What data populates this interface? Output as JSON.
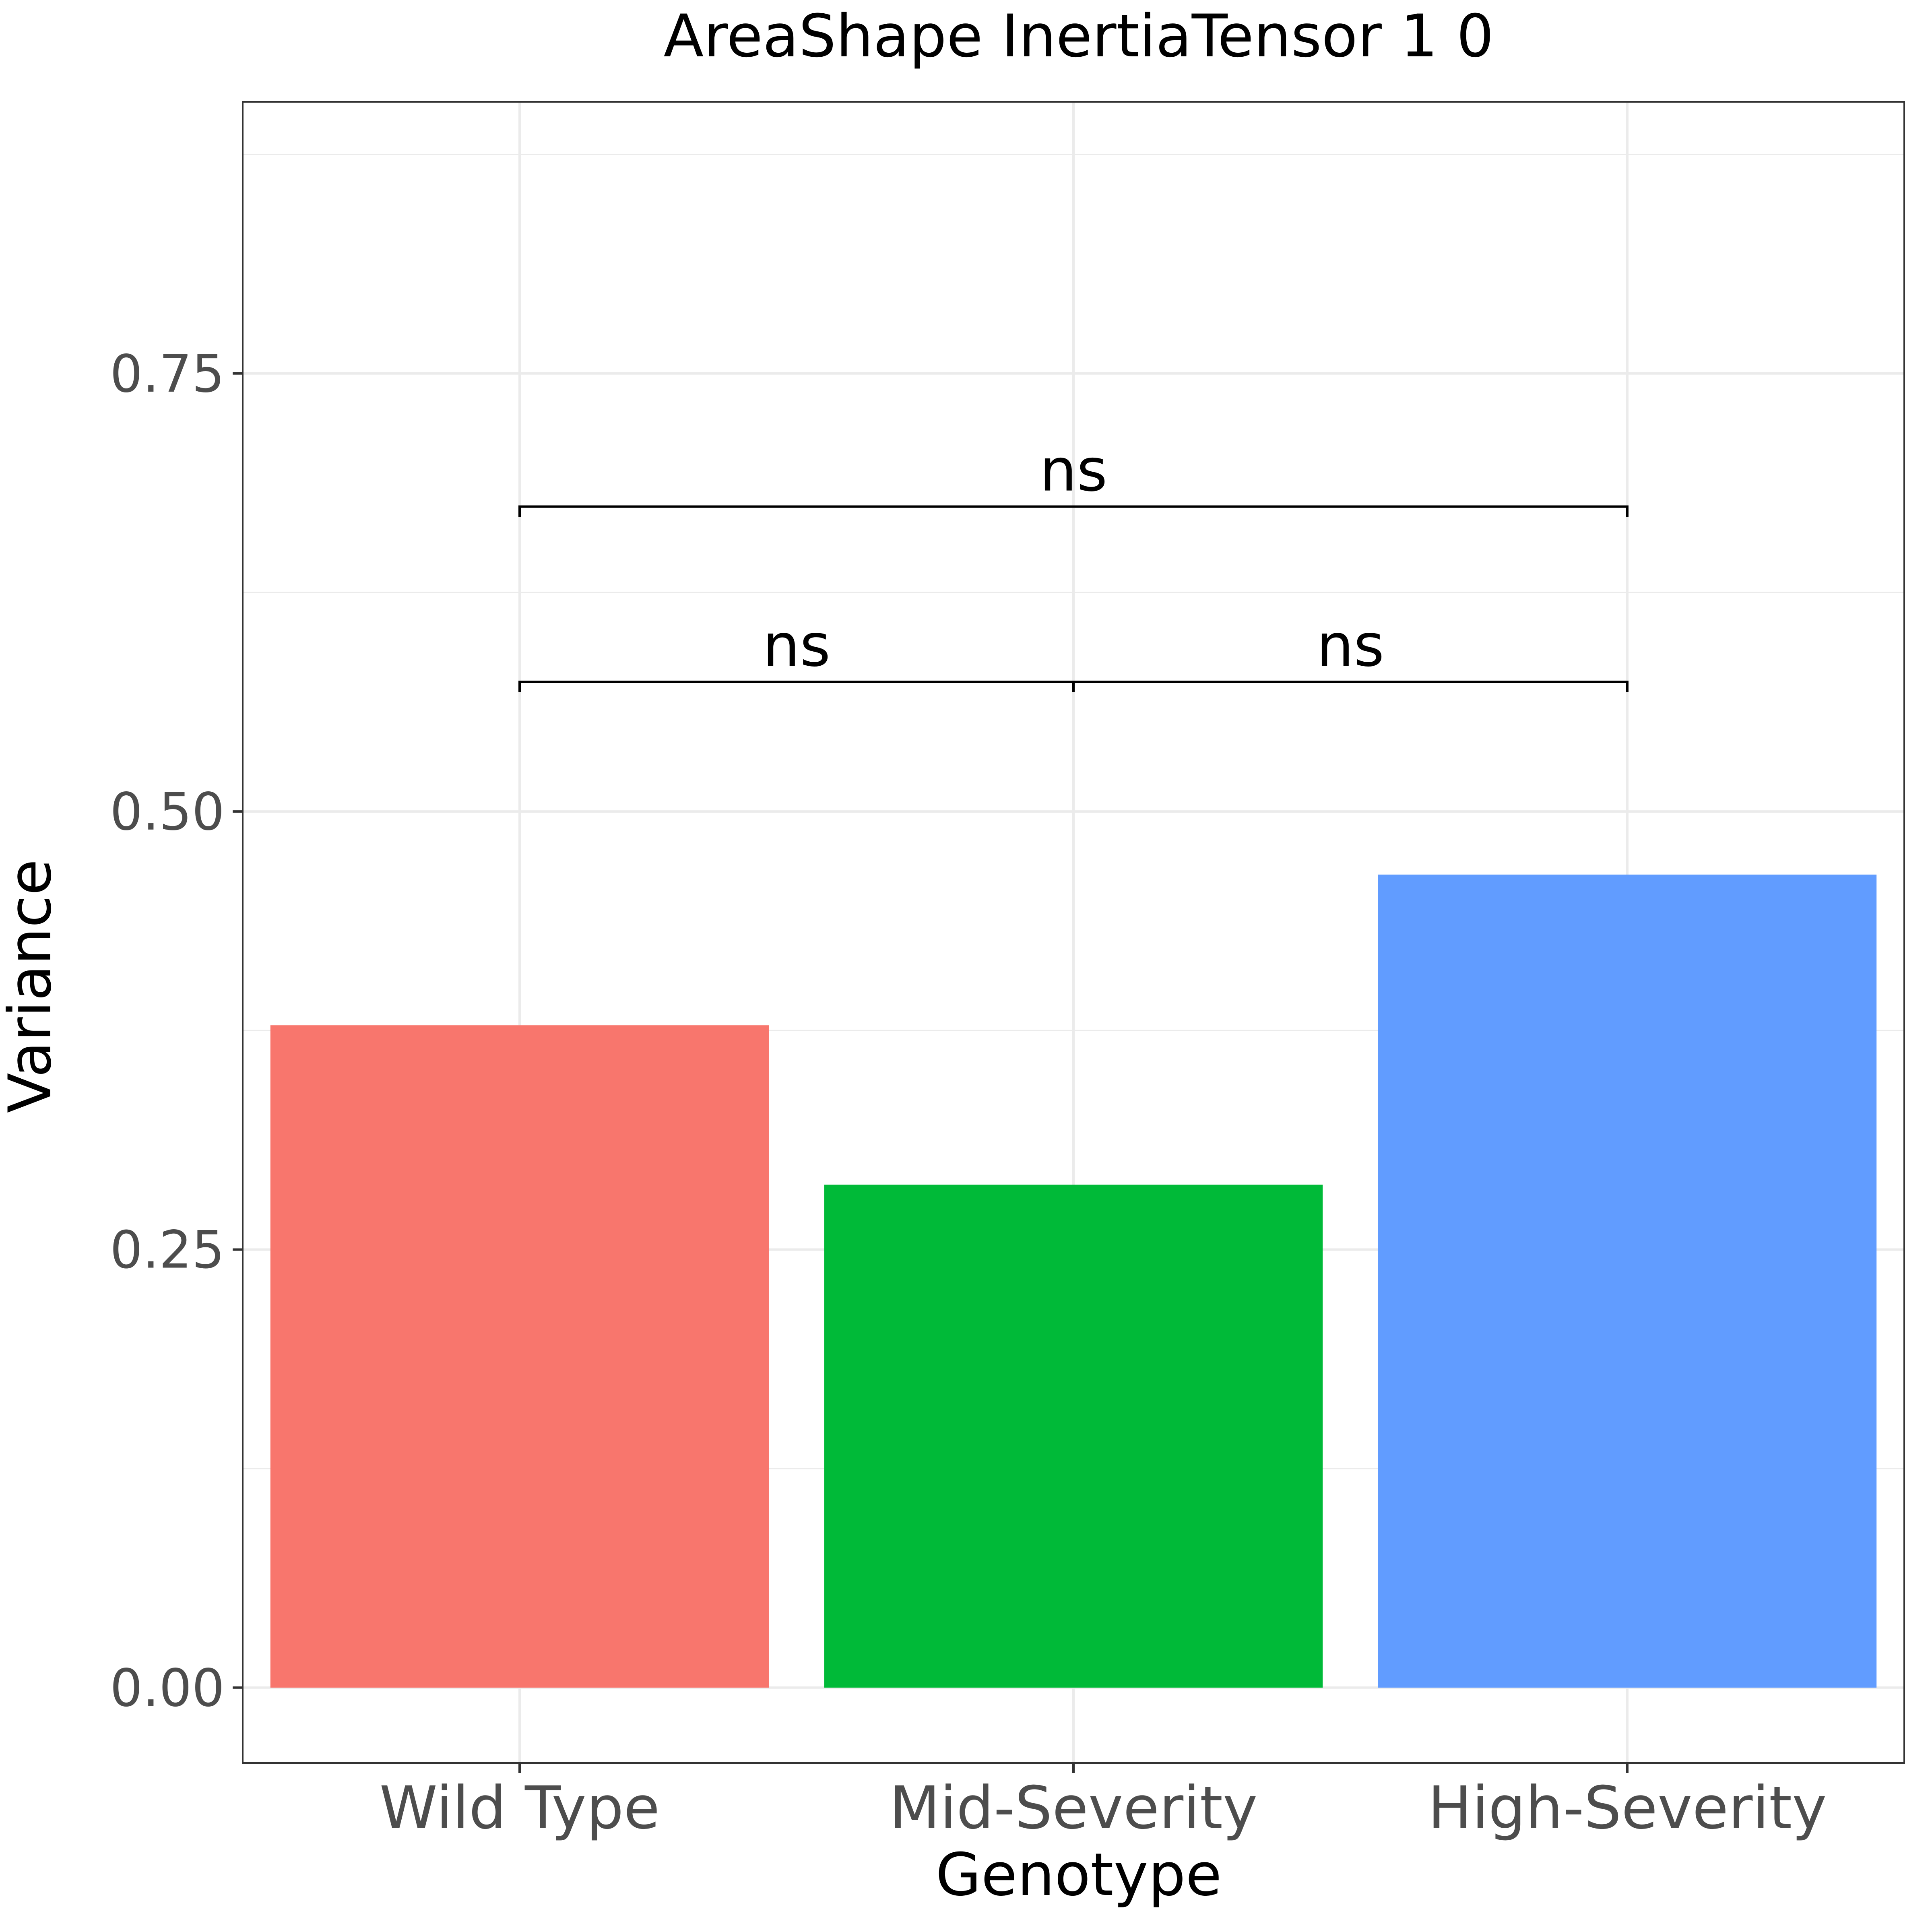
{
  "chart_data": {
    "type": "bar",
    "title": "AreaShape InertiaTensor 1 0",
    "xlabel": "Genotype",
    "ylabel": "Variance",
    "categories": [
      "Wild Type",
      "Mid-Severity",
      "High-Severity"
    ],
    "values": [
      0.378,
      0.287,
      0.464
    ],
    "colors": [
      "#F8766D",
      "#00BA38",
      "#619CFF"
    ],
    "ylim": [
      -0.043,
      0.905
    ],
    "yticks": [
      0.0,
      0.25,
      0.5,
      0.75
    ],
    "ytick_labels": [
      "0.00",
      "0.25",
      "0.50",
      "0.75"
    ],
    "grid": true,
    "annotations": [
      {
        "from": 0,
        "to": 1,
        "y": 0.574,
        "label": "ns"
      },
      {
        "from": 1,
        "to": 2,
        "y": 0.574,
        "label": "ns"
      },
      {
        "from": 0,
        "to": 2,
        "y": 0.674,
        "label": "ns"
      }
    ]
  }
}
